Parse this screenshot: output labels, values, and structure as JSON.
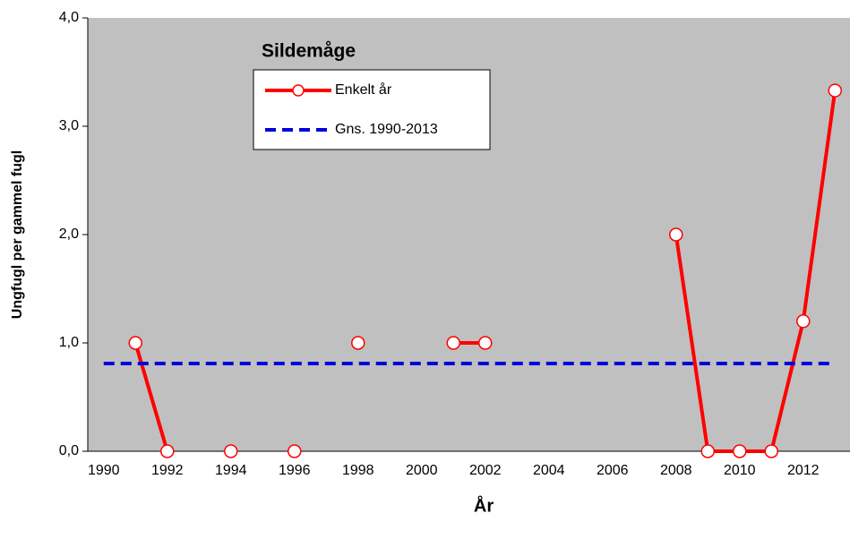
{
  "chart_data": {
    "type": "line",
    "title": "Sildemåge",
    "x_label": "År",
    "y_label": "Ungfugl per gammel fugl",
    "categories": [
      1990,
      null,
      1992,
      null,
      1994,
      null,
      1996,
      null,
      1998,
      null,
      2000,
      null,
      2002,
      null,
      2004,
      null,
      2006,
      null,
      2008,
      null,
      2010,
      null,
      2012,
      null
    ],
    "series": [
      {
        "name": "Enkelt år",
        "color": "#ff0000",
        "values": [
          null,
          1,
          0,
          null,
          0,
          null,
          0,
          null,
          1,
          null,
          null,
          1,
          1,
          null,
          null,
          null,
          null,
          null,
          2,
          0,
          0,
          0,
          1.2,
          3.33
        ]
      },
      {
        "name": "Gns. 1990-2013",
        "color": "#0000dd",
        "dashed": true,
        "values": [
          0.81,
          0.81,
          0.81,
          0.81,
          0.81,
          0.81,
          0.81,
          0.81,
          0.81,
          0.81,
          0.81,
          0.81,
          0.81,
          0.81,
          0.81,
          0.81,
          0.81,
          0.81,
          0.81,
          0.81,
          0.81,
          0.81,
          0.81,
          0.81
        ]
      }
    ],
    "ylim": [
      0,
      4
    ],
    "yticks": [
      {
        "value": 0,
        "label": "0,0"
      },
      {
        "value": 1,
        "label": "1,0"
      },
      {
        "value": 2,
        "label": "2,0"
      },
      {
        "value": 3,
        "label": "3,0"
      },
      {
        "value": 4,
        "label": "4,0"
      }
    ]
  }
}
